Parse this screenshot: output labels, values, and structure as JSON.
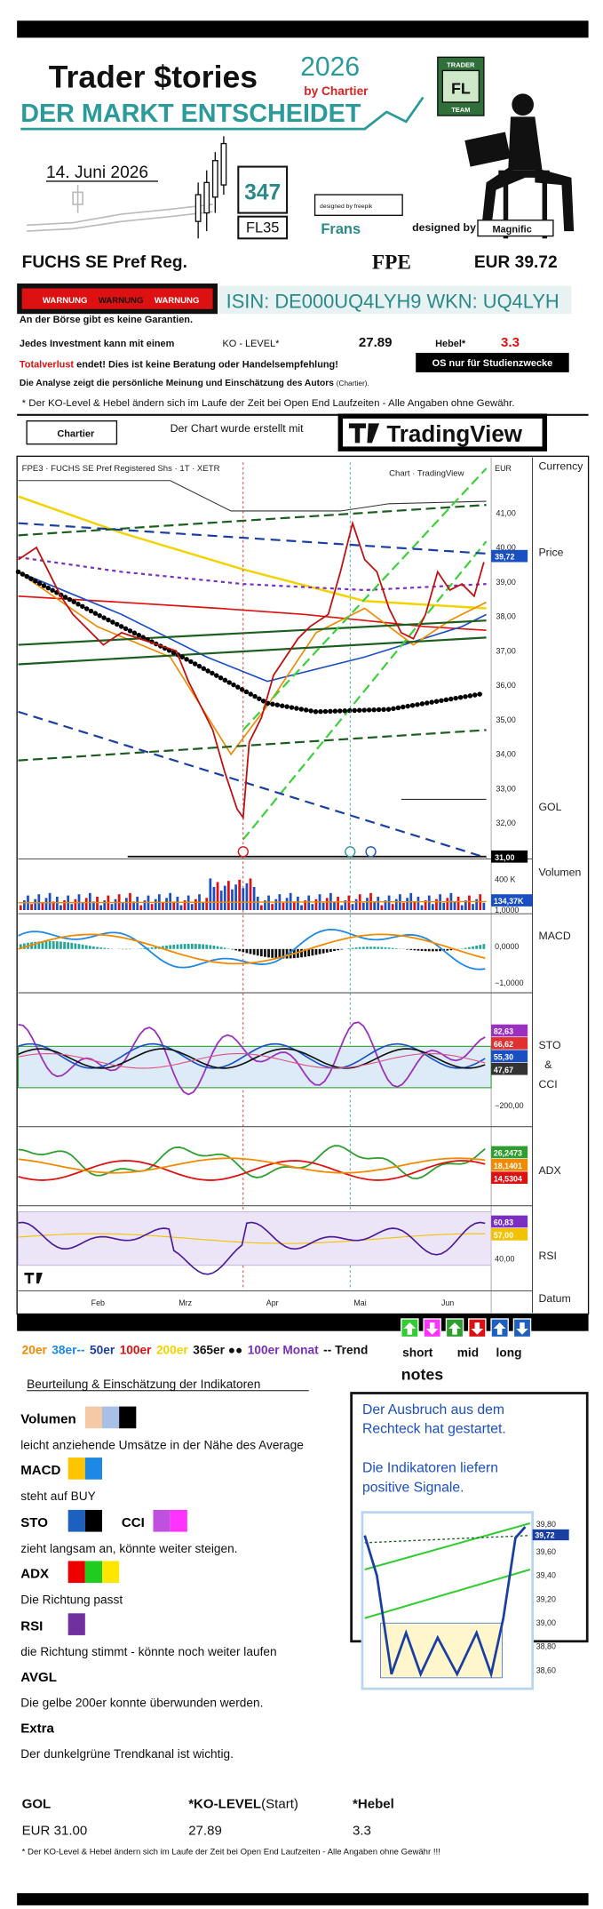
{
  "header": {
    "brand": "Trader $tories",
    "year": "2026",
    "by": "by Chartier",
    "slogan": "DER MARKT ENTSCHEIDET",
    "date": "14. Juni 2026",
    "count": "347",
    "code": "FL35",
    "freepik": "designed by freepik",
    "name": "Frans",
    "magnific_prefix": "designed by",
    "magnific": "Magnific",
    "team_top": "TRADER",
    "team_mid": "FL",
    "team_bottom": "TEAM"
  },
  "instrument": {
    "name": "FUCHS SE Pref Reg.",
    "symbol": "FPE",
    "price": "EUR 39.72",
    "warnings": [
      "WARNUNG",
      "WARNUNG",
      "WARNUNG"
    ],
    "isin": "ISIN:  DE000UQ4LYH9  WKN:  UQ4LYH"
  },
  "disclaimer": {
    "line1": "An der Börse gibt es keine Garantien.",
    "line2": "Jedes Investment kann mit einem",
    "ko_label": "KO - LEVEL*",
    "ko_value": "27.89",
    "hebel_label": "Hebel*",
    "hebel_value": "3.3",
    "line3_red": "Totalverlust",
    "line3": " endet! Dies ist keine Beratung oder Handelsempfehlung!",
    "badge": "OS nur für Studienzwecke",
    "line4": "Die Analyse zeigt die persönliche Meinung und Einschätzung des Autors ",
    "line4_small": "(Chartier).",
    "note": "* Der KO-Level & Hebel ändern sich im Laufe der Zeit bei Open End Laufzeiten  -  Alle Angaben ohne Gewähr."
  },
  "tools": {
    "chartier": "Chartier",
    "made_with": "Der Chart wurde erstellt mit",
    "tradingview": "TradingView"
  },
  "chart": {
    "title": "FPE3 · FUCHS SE Pref Registered Shs · 1T · XETR",
    "source": "Chart · TradingView",
    "currency": "EUR",
    "price_axis": [
      "41,00",
      "40,00",
      "39,00",
      "38,00",
      "37,00",
      "36,00",
      "35,00",
      "34,00",
      "33,00",
      "32,00"
    ],
    "price_tag": "39,72",
    "gol_tag": "31,00",
    "volume_axis": "400 K",
    "volume_tag": "134,37K",
    "macd_axis": [
      "1,0000",
      "0,0000",
      "−1,0000"
    ],
    "sto_tags": [
      "82,63",
      "66,62",
      "55,30",
      "47,67"
    ],
    "sto_axis": "−200,00",
    "adx_tags": [
      "26,2473",
      "18,1401",
      "14,5304"
    ],
    "rsi_tags": [
      "60,83",
      "57,00"
    ],
    "rsi_axis": "40,00",
    "months": [
      "Feb",
      "Mrz",
      "Apr",
      "Mai",
      "Jun"
    ],
    "side_labels": {
      "currency": "Currency",
      "price": "Price",
      "gol": "GOL",
      "volume": "Volumen",
      "macd": "MACD",
      "sto": "STO",
      "and": "&",
      "cci": "CCI",
      "adx": "ADX",
      "rsi": "RSI",
      "date": "Datum"
    }
  },
  "legend": {
    "items": [
      "20er",
      "38er--",
      "50er",
      "100er",
      "200er",
      "365er ●●",
      "100er Monat",
      "-- Trend"
    ],
    "short": "short",
    "mid": "mid",
    "long": "long"
  },
  "indicators": {
    "heading": "Beurteilung & Einschätzung der Indikatoren",
    "volumen": "Volumen",
    "volumen_text": "leicht anziehende Umsätze in der Nähe des Average",
    "macd": "MACD",
    "macd_text": "steht auf BUY",
    "sto": "STO",
    "cci": "CCI",
    "sto_text": "zieht langsam an, könnte weiter steigen.",
    "adx": "ADX",
    "adx_text": "Die Richtung passt",
    "rsi": "RSI",
    "rsi_text": "die Richtung stimmt - könnte noch weiter laufen",
    "avgl": "AVGL",
    "avgl_text": "Die gelbe 200er konnte überwunden werden.",
    "extra": "Extra",
    "extra_text": "Der dunkelgrüne Trendkanal ist wichtig."
  },
  "notes": {
    "title": "notes",
    "lines": [
      "Der Ausbruch aus dem",
      "Rechteck hat gestartet.",
      "Die Indikatoren liefern",
      "positive Signale."
    ],
    "axis": [
      "39,80",
      "39,60",
      "39,40",
      "39,20",
      "39,00",
      "38,80",
      "38,60"
    ],
    "tag": "39,72"
  },
  "footer": {
    "gol_label": "GOL",
    "ko_label": "*KO-LEVEL",
    "ko_start": "(Start)",
    "hebel_label": "*Hebel",
    "gol_value": "EUR 31.00",
    "ko_value": "27.89",
    "hebel_value": "3.3",
    "note": "* Der KO-Level & Hebel ändern sich im Laufe der Zeit bei Open End Laufzeiten  -  Alle Angaben ohne Gewähr !!!"
  }
}
